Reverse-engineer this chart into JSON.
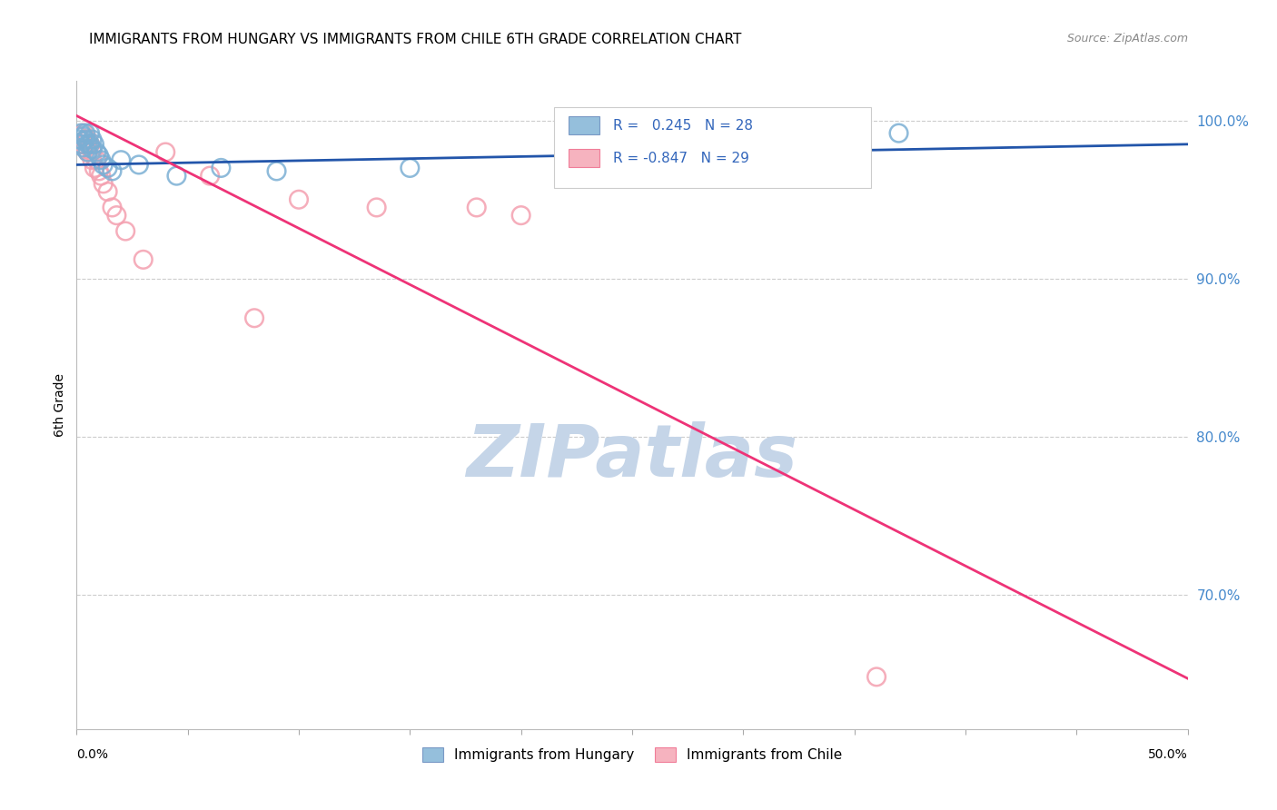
{
  "title": "IMMIGRANTS FROM HUNGARY VS IMMIGRANTS FROM CHILE 6TH GRADE CORRELATION CHART",
  "source": "Source: ZipAtlas.com",
  "ylabel": "6th Grade",
  "xmin": 0.0,
  "xmax": 0.5,
  "ymin": 0.615,
  "ymax": 1.025,
  "yticks": [
    0.7,
    0.8,
    0.9,
    1.0
  ],
  "ytick_labels": [
    "70.0%",
    "80.0%",
    "90.0%",
    "100.0%"
  ],
  "xticks": [
    0.0,
    0.05,
    0.1,
    0.15,
    0.2,
    0.25,
    0.3,
    0.35,
    0.4,
    0.45,
    0.5
  ],
  "hungary_R": 0.245,
  "hungary_N": 28,
  "chile_R": -0.847,
  "chile_N": 29,
  "hungary_color": "#7BAFD4",
  "chile_color": "#F4A0B0",
  "hungary_line_color": "#2255AA",
  "chile_line_color": "#EE3377",
  "watermark": "ZIPatlas",
  "watermark_color": "#C5D5E8",
  "hungary_line_x0": 0.0,
  "hungary_line_y0": 0.972,
  "hungary_line_x1": 0.5,
  "hungary_line_y1": 0.985,
  "chile_line_x0": 0.0,
  "chile_line_y0": 1.003,
  "chile_line_x1": 0.5,
  "chile_line_y1": 0.647,
  "hungary_x": [
    0.001,
    0.002,
    0.002,
    0.003,
    0.003,
    0.003,
    0.004,
    0.004,
    0.005,
    0.005,
    0.006,
    0.006,
    0.007,
    0.007,
    0.008,
    0.009,
    0.01,
    0.011,
    0.012,
    0.014,
    0.016,
    0.02,
    0.028,
    0.045,
    0.065,
    0.09,
    0.15,
    0.37
  ],
  "hungary_y": [
    0.988,
    0.992,
    0.985,
    0.99,
    0.987,
    0.983,
    0.992,
    0.988,
    0.985,
    0.98,
    0.992,
    0.985,
    0.988,
    0.982,
    0.985,
    0.98,
    0.978,
    0.975,
    0.972,
    0.97,
    0.968,
    0.975,
    0.972,
    0.965,
    0.97,
    0.968,
    0.97,
    0.992
  ],
  "chile_x": [
    0.001,
    0.002,
    0.003,
    0.003,
    0.004,
    0.004,
    0.005,
    0.005,
    0.006,
    0.007,
    0.007,
    0.008,
    0.009,
    0.01,
    0.011,
    0.012,
    0.014,
    0.016,
    0.018,
    0.022,
    0.03,
    0.04,
    0.06,
    0.08,
    0.1,
    0.135,
    0.18,
    0.2,
    0.36
  ],
  "chile_y": [
    0.99,
    0.985,
    0.992,
    0.985,
    0.988,
    0.982,
    0.988,
    0.98,
    0.985,
    0.98,
    0.975,
    0.97,
    0.975,
    0.968,
    0.965,
    0.96,
    0.955,
    0.945,
    0.94,
    0.93,
    0.912,
    0.98,
    0.965,
    0.875,
    0.95,
    0.945,
    0.945,
    0.94,
    0.648
  ]
}
